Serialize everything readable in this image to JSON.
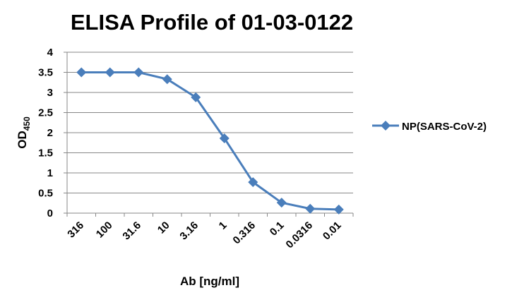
{
  "chart_data": {
    "type": "line",
    "title": "ELISA Profile of 01-03-0122",
    "xlabel": "Ab [ng/ml]",
    "ylabel": "OD",
    "ylabel_subscript": "450",
    "categories": [
      "316",
      "100",
      "31.6",
      "10",
      "3.16",
      "1",
      "0.316",
      "0.1",
      "0.0316",
      "0.01"
    ],
    "ylim": [
      0,
      4
    ],
    "yticks": [
      "0",
      "0.5",
      "1",
      "1.5",
      "2",
      "2.5",
      "3",
      "3.5",
      "4"
    ],
    "grid": true,
    "legend_position": "right",
    "series": [
      {
        "name": "NP(SARS-CoV-2)",
        "values": [
          3.5,
          3.5,
          3.5,
          3.33,
          2.88,
          1.86,
          0.77,
          0.26,
          0.11,
          0.09
        ],
        "color": "#4a7ebb",
        "marker": "diamond"
      }
    ]
  }
}
